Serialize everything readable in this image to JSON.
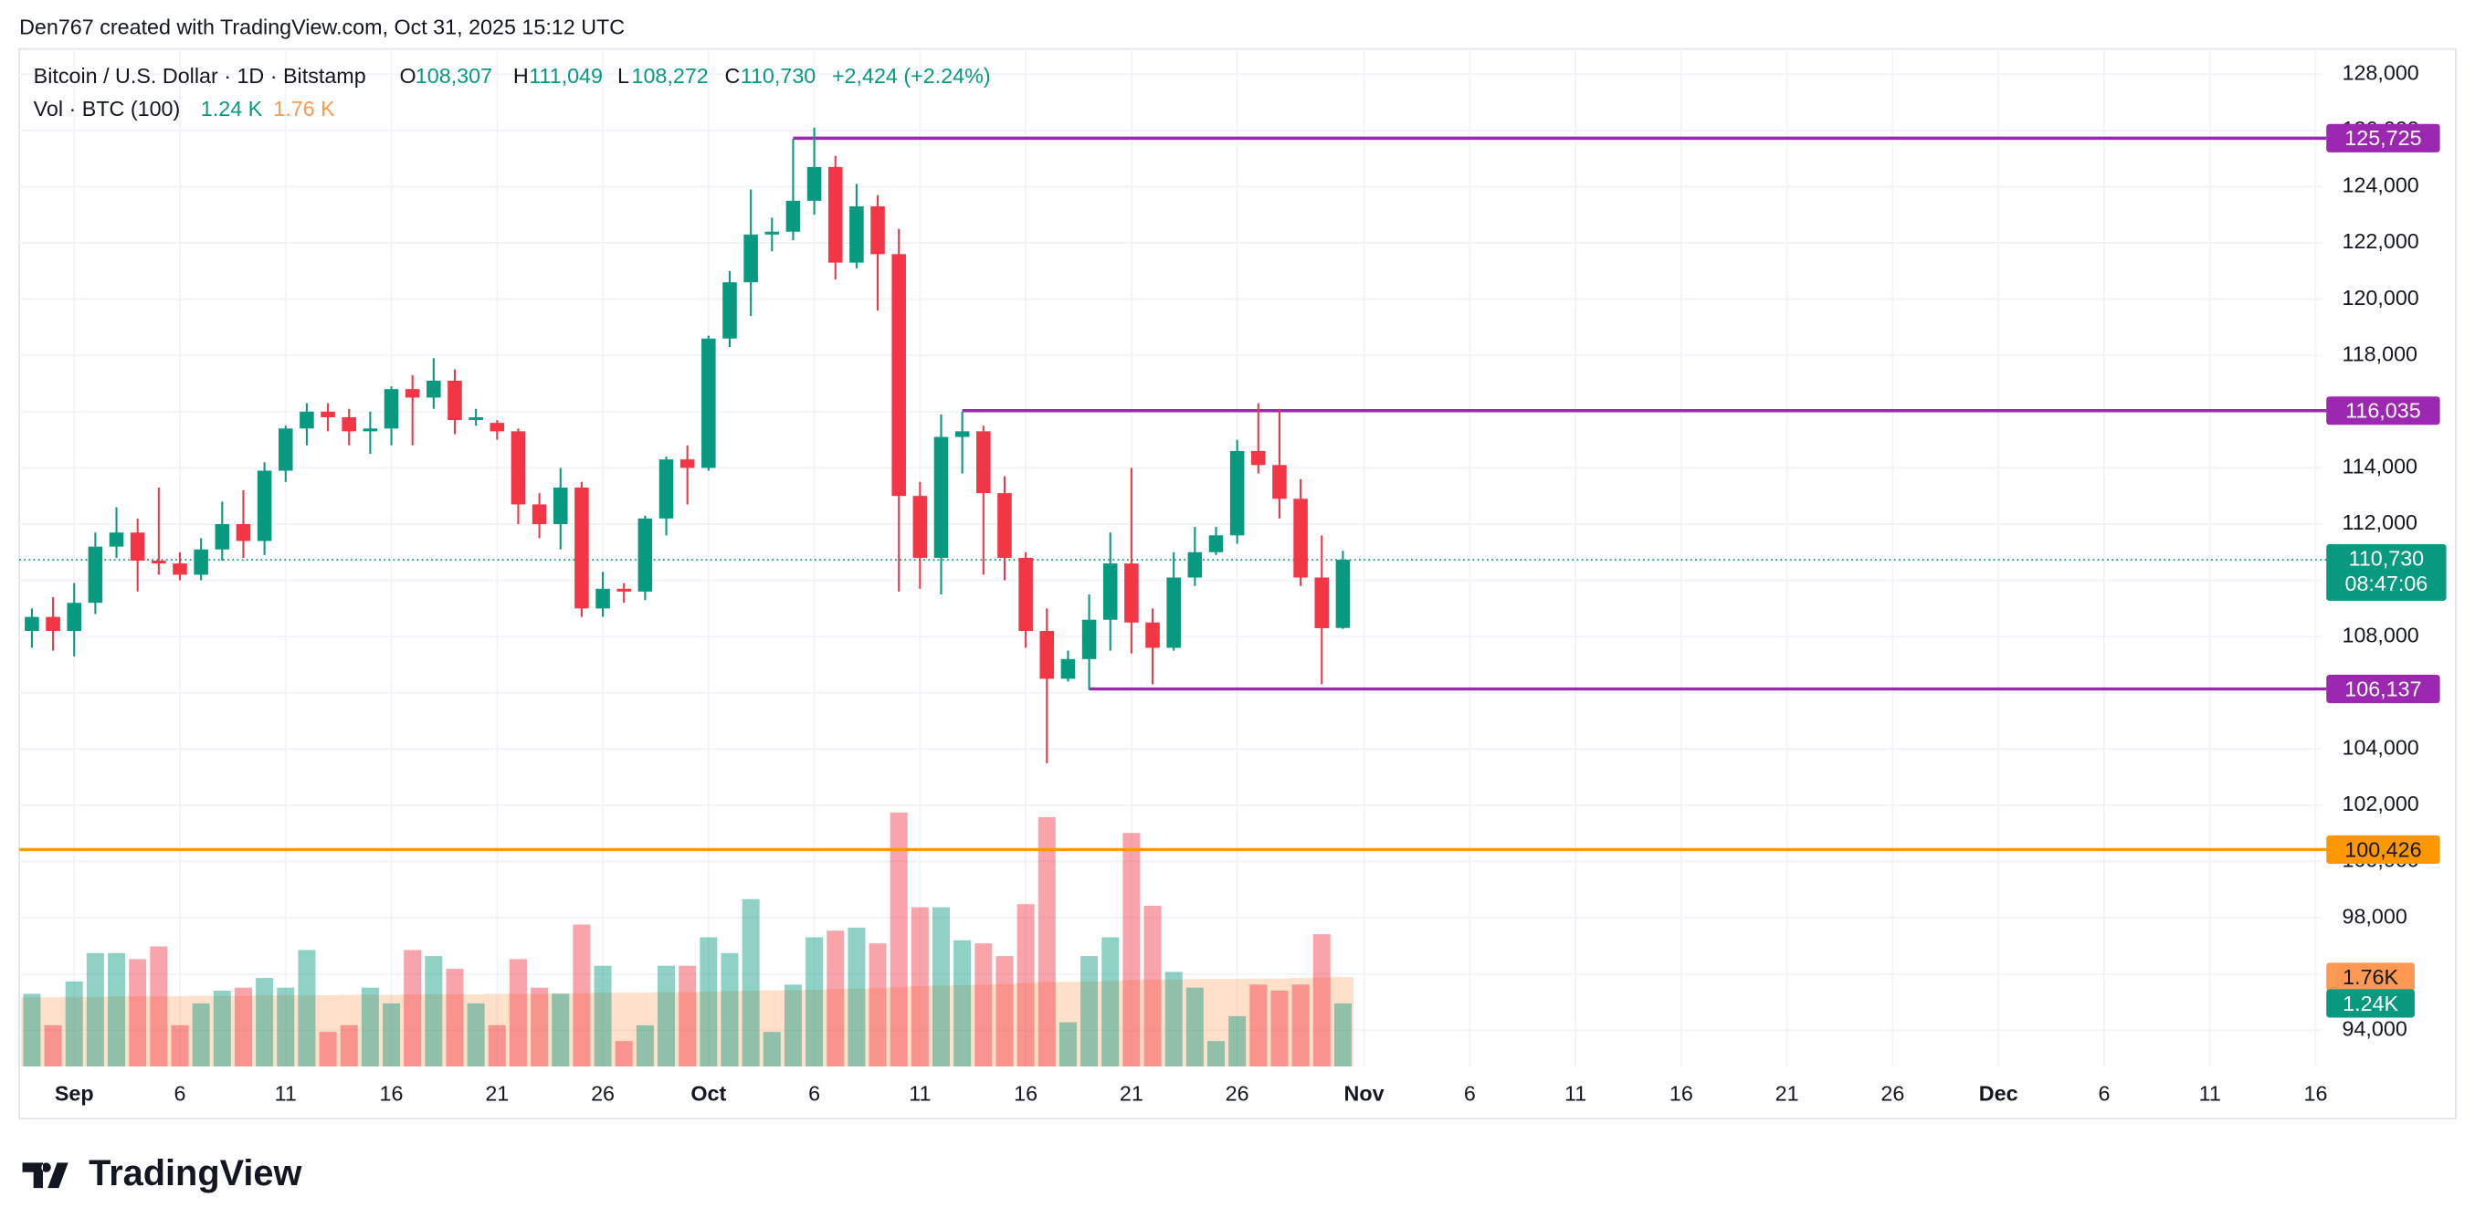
{
  "header": {
    "credit": "Den767 created with TradingView.com, Oct 31, 2025 15:12 UTC"
  },
  "legend": {
    "symbol": "Bitcoin / U.S. Dollar · 1D · Bitstamp",
    "o": "O",
    "open": "108,307",
    "h": "H",
    "high": "111,049",
    "l": "L",
    "low": "108,272",
    "c": "C",
    "close": "110,730",
    "change": "+2,424 (+2.24%)",
    "vol": "Vol · BTC (100)",
    "vol_value": "1.24 K",
    "vol_ma": "1.76 K"
  },
  "footer": {
    "brand": "TradingView"
  },
  "chart_data": {
    "type": "candlestick",
    "categories": [
      "Aug 30",
      "Aug 31",
      "Sep 1",
      "Sep 2",
      "Sep 3",
      "Sep 4",
      "Sep 5",
      "Sep 6",
      "Sep 7",
      "Sep 8",
      "Sep 9",
      "Sep 10",
      "Sep 11",
      "Sep 12",
      "Sep 13",
      "Sep 14",
      "Sep 15",
      "Sep 16",
      "Sep 17",
      "Sep 18",
      "Sep 19",
      "Sep 20",
      "Sep 21",
      "Sep 22",
      "Sep 23",
      "Sep 24",
      "Sep 25",
      "Sep 26",
      "Sep 27",
      "Sep 28",
      "Sep 29",
      "Sep 30",
      "Oct 1",
      "Oct 2",
      "Oct 3",
      "Oct 4",
      "Oct 5",
      "Oct 6",
      "Oct 7",
      "Oct 8",
      "Oct 9",
      "Oct 10",
      "Oct 11",
      "Oct 12",
      "Oct 13",
      "Oct 14",
      "Oct 15",
      "Oct 16",
      "Oct 17",
      "Oct 18",
      "Oct 19",
      "Oct 20",
      "Oct 21",
      "Oct 22",
      "Oct 23",
      "Oct 24",
      "Oct 25",
      "Oct 26",
      "Oct 27",
      "Oct 28",
      "Oct 29",
      "Oct 30",
      "Oct 31"
    ],
    "open": [
      108200,
      108700,
      108200,
      109200,
      111200,
      111700,
      110700,
      110600,
      110200,
      111100,
      112000,
      111400,
      113900,
      115400,
      116000,
      115800,
      115300,
      115400,
      116800,
      116500,
      117100,
      115700,
      115600,
      115300,
      112700,
      112000,
      113300,
      109000,
      109700,
      109600,
      112200,
      114300,
      114000,
      118600,
      120600,
      122300,
      122400,
      123500,
      124700,
      121300,
      123300,
      121600,
      113000,
      110800,
      115100,
      115300,
      113100,
      110800,
      108200,
      106500,
      107200,
      108600,
      110600,
      108500,
      107600,
      110100,
      111000,
      111600,
      114600,
      114100,
      112900,
      110100,
      108307
    ],
    "high": [
      109000,
      109400,
      109900,
      111700,
      112600,
      112200,
      113300,
      111000,
      111500,
      112800,
      113200,
      114200,
      115500,
      116300,
      116300,
      116100,
      116000,
      116900,
      117300,
      117900,
      117500,
      116100,
      115700,
      115400,
      113100,
      114000,
      113500,
      110300,
      109900,
      112300,
      114400,
      114800,
      118700,
      121000,
      123900,
      122900,
      125700,
      126100,
      125100,
      124100,
      123700,
      122500,
      113500,
      115900,
      116000,
      115500,
      113700,
      111000,
      109000,
      107500,
      109500,
      111700,
      114000,
      109000,
      111000,
      111900,
      111900,
      115000,
      116300,
      116100,
      113600,
      111600,
      111049
    ],
    "low": [
      107600,
      107500,
      107300,
      108800,
      110800,
      109600,
      110200,
      110000,
      110000,
      110700,
      110800,
      110900,
      113500,
      114800,
      115300,
      114800,
      114500,
      114800,
      114800,
      116100,
      115200,
      115500,
      115000,
      112000,
      111500,
      111100,
      108700,
      108700,
      109200,
      109300,
      111600,
      112700,
      113900,
      118300,
      119400,
      121700,
      122100,
      123000,
      120700,
      121100,
      119600,
      109600,
      109700,
      109500,
      113800,
      110200,
      110000,
      107600,
      103500,
      106400,
      106100,
      107500,
      107400,
      106300,
      107500,
      109800,
      110900,
      111300,
      113800,
      112200,
      109800,
      106300,
      108272
    ],
    "close": [
      108700,
      108200,
      109200,
      111200,
      111700,
      110700,
      110600,
      110200,
      111100,
      112000,
      111400,
      113900,
      115400,
      116000,
      115800,
      115300,
      115400,
      116800,
      116500,
      117100,
      115700,
      115800,
      115300,
      112700,
      112000,
      113300,
      109000,
      109700,
      109600,
      112200,
      114300,
      114000,
      118600,
      120600,
      122300,
      122400,
      123500,
      124700,
      121300,
      123300,
      121600,
      113000,
      110800,
      115100,
      115300,
      113100,
      110800,
      108200,
      106500,
      107200,
      108600,
      110600,
      108500,
      107600,
      110100,
      111000,
      111600,
      114600,
      114100,
      112900,
      110100,
      108300,
      110730
    ],
    "up_color": "#089981",
    "down_color": "#f23645",
    "ylim": [
      92710,
      128900
    ],
    "yticks": [
      {
        "value": 94000,
        "label": "94,000"
      },
      {
        "value": 96000,
        "label": "96,000"
      },
      {
        "value": 98000,
        "label": "98,000"
      },
      {
        "value": 100000,
        "label": "100,000"
      },
      {
        "value": 102000,
        "label": "102,000"
      },
      {
        "value": 104000,
        "label": "104,000"
      },
      {
        "value": 106000,
        "label": "106,000"
      },
      {
        "value": 108000,
        "label": "108,000"
      },
      {
        "value": 110000,
        "label": "110,000"
      },
      {
        "value": 112000,
        "label": "112,000"
      },
      {
        "value": 114000,
        "label": "114,000"
      },
      {
        "value": 116000,
        "label": "116,000"
      },
      {
        "value": 118000,
        "label": "118,000"
      },
      {
        "value": 120000,
        "label": "120,000"
      },
      {
        "value": 122000,
        "label": "122,000"
      },
      {
        "value": 124000,
        "label": "124,000"
      },
      {
        "value": 126000,
        "label": "126,000"
      },
      {
        "value": 128000,
        "label": "128,000"
      }
    ],
    "xticks": [
      {
        "value": "Sep 1",
        "label": "Sep"
      },
      {
        "value": "Sep 6",
        "label": "6"
      },
      {
        "value": "Sep 11",
        "label": "11"
      },
      {
        "value": "Sep 16",
        "label": "16"
      },
      {
        "value": "Sep 21",
        "label": "21"
      },
      {
        "value": "Sep 26",
        "label": "26"
      },
      {
        "value": "Oct 1",
        "label": "Oct"
      },
      {
        "value": "Oct 6",
        "label": "6"
      },
      {
        "value": "Oct 11",
        "label": "11"
      },
      {
        "value": "Oct 16",
        "label": "16"
      },
      {
        "value": "Oct 21",
        "label": "21"
      },
      {
        "value": "Oct 26",
        "label": "26"
      },
      {
        "value": "Nov 1",
        "label": "Nov"
      },
      {
        "value": "Nov 6",
        "label": "6"
      },
      {
        "value": "Nov 11",
        "label": "11"
      },
      {
        "value": "Nov 16",
        "label": "16"
      },
      {
        "value": "Nov 21",
        "label": "21"
      },
      {
        "value": "Nov 26",
        "label": "26"
      },
      {
        "value": "Dec 1",
        "label": "Dec"
      },
      {
        "value": "Dec 6",
        "label": "6"
      },
      {
        "value": "Dec 11",
        "label": "11"
      },
      {
        "value": "Dec 16",
        "label": "16"
      }
    ],
    "grid": true,
    "volume": {
      "name": "Vol",
      "vlim": [
        0,
        20000
      ],
      "values": [
        1430,
        810,
        1670,
        2230,
        2230,
        2110,
        2360,
        810,
        1240,
        1490,
        1550,
        1740,
        1550,
        2290,
        680,
        810,
        1550,
        1240,
        2290,
        2170,
        1920,
        1240,
        810,
        2110,
        1550,
        1430,
        2790,
        1980,
        500,
        810,
        1980,
        1980,
        2540,
        2230,
        3290,
        680,
        1610,
        2540,
        2670,
        2730,
        2420,
        4990,
        3130,
        3130,
        2480,
        2420,
        2170,
        3190,
        4900,
        870,
        2170,
        2540,
        4590,
        3160,
        1860,
        1550,
        500,
        990,
        1610,
        1490,
        1610,
        2600,
        1240
      ],
      "ma_values": [
        1360,
        1360,
        1370,
        1370,
        1380,
        1380,
        1380,
        1380,
        1390,
        1390,
        1390,
        1400,
        1400,
        1400,
        1400,
        1410,
        1410,
        1410,
        1420,
        1420,
        1420,
        1420,
        1430,
        1430,
        1430,
        1440,
        1440,
        1450,
        1450,
        1450,
        1460,
        1460,
        1470,
        1480,
        1490,
        1500,
        1500,
        1510,
        1520,
        1530,
        1540,
        1560,
        1580,
        1590,
        1600,
        1610,
        1620,
        1640,
        1660,
        1660,
        1670,
        1680,
        1700,
        1710,
        1710,
        1720,
        1720,
        1720,
        1730,
        1730,
        1740,
        1750,
        1760
      ],
      "ma_color": "#ff9850",
      "value_badge": "1.24K",
      "ma_badge": "1.76K"
    },
    "levels": [
      {
        "value": 125725,
        "label": "125,725",
        "start": "Oct 5",
        "color": "#9c27b0"
      },
      {
        "value": 116035,
        "label": "116,035",
        "start": "Oct 13",
        "color": "#9c27b0"
      },
      {
        "value": 106137,
        "label": "106,137",
        "start": "Oct 19",
        "color": "#9c27b0"
      },
      {
        "value": 100426,
        "label": "100,426",
        "color": "#ff9800"
      }
    ],
    "last_price": {
      "value": 110730,
      "label": "110,730",
      "countdown": "08:47:06"
    }
  }
}
